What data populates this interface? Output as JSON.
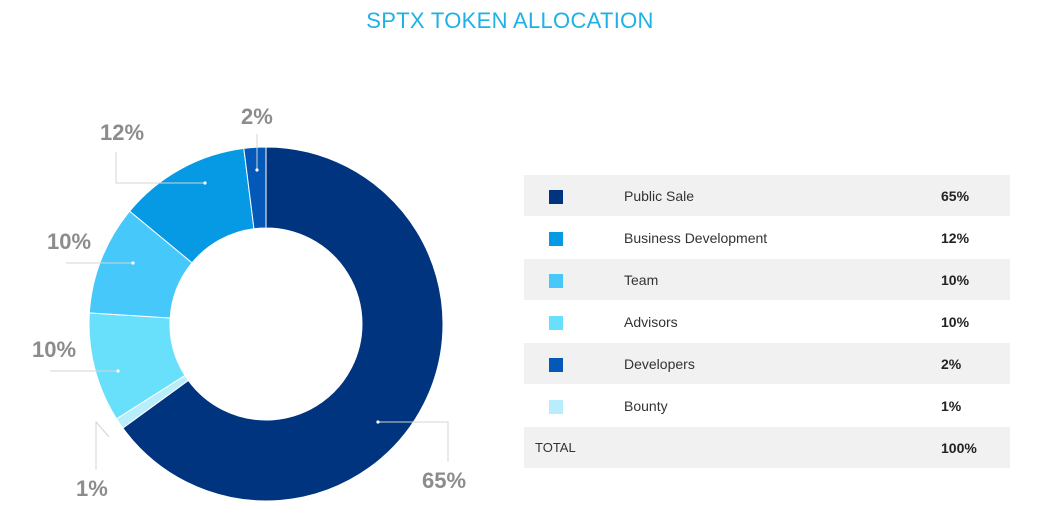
{
  "title": "SPTX TOKEN ALLOCATION",
  "colors": {
    "public_sale": "#00347f",
    "business_development": "#0699e4",
    "team": "#46c8fb",
    "advisors": "#69e0fb",
    "developers": "#0459b8",
    "bounty": "#b8edfb"
  },
  "chart_data": {
    "type": "pie",
    "donut": true,
    "title": "SPTX TOKEN ALLOCATION",
    "slices": [
      {
        "name": "Public Sale",
        "value": 65,
        "label": "65%",
        "color": "#00347f"
      },
      {
        "name": "Bounty",
        "value": 1,
        "label": "1%",
        "color": "#b8edfb"
      },
      {
        "name": "Advisors",
        "value": 10,
        "label": "10%",
        "color": "#69e0fb"
      },
      {
        "name": "Team",
        "value": 10,
        "label": "10%",
        "color": "#46c8fb"
      },
      {
        "name": "Business Development",
        "value": 12,
        "label": "12%",
        "color": "#0699e4"
      },
      {
        "name": "Developers",
        "value": 2,
        "label": "2%",
        "color": "#0459b8"
      }
    ]
  },
  "legend": {
    "rows": [
      {
        "name": "Public Sale",
        "value": "65%",
        "color": "#00347f"
      },
      {
        "name": "Business Development",
        "value": "12%",
        "color": "#0699e4"
      },
      {
        "name": "Team",
        "value": "10%",
        "color": "#46c8fb"
      },
      {
        "name": "Advisors",
        "value": "10%",
        "color": "#69e0fb"
      },
      {
        "name": "Developers",
        "value": "2%",
        "color": "#0459b8"
      },
      {
        "name": "Bounty",
        "value": "1%",
        "color": "#b8edfb"
      }
    ],
    "total_label": "TOTAL",
    "total_value": "100%"
  }
}
